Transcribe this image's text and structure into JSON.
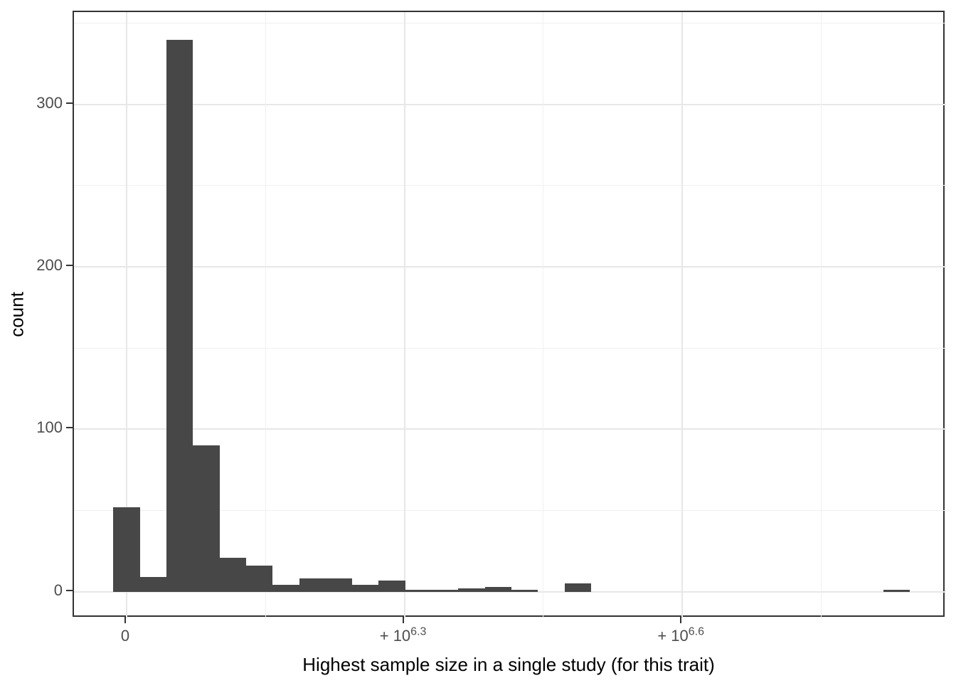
{
  "chart_data": {
    "type": "histogram",
    "title": "",
    "xlabel": "Highest sample size in a single study (for this trait)",
    "ylabel": "count",
    "x_axis": {
      "scale_note": "pseudo-log sample-size axis; u-units: 0 at tick '0', 1 at 10^6.3, 2 at 10^6.6",
      "domain_u": [
        -0.1894,
        2.9493
      ],
      "major_ticks": [
        {
          "u": 0,
          "label": "0",
          "exp": ""
        },
        {
          "u": 1,
          "label": "+ 10",
          "exp": "6.3"
        },
        {
          "u": 2,
          "label": "+ 10",
          "exp": "6.6"
        }
      ],
      "minor_ticks_u": [
        0.5,
        1.5,
        2.5
      ]
    },
    "y_axis": {
      "domain": [
        -16.4,
        356.9
      ],
      "major_ticks": [
        0,
        100,
        200,
        300
      ],
      "minor_ticks": [
        50,
        150,
        250,
        350
      ],
      "grid": true,
      "legend": "none"
    },
    "bins": {
      "start_u": -0.0478,
      "width_u": 0.09554,
      "counts": [
        52,
        9,
        340,
        90,
        21,
        16,
        4,
        8,
        8,
        4,
        7,
        1,
        1,
        2,
        3,
        1,
        0,
        5,
        0,
        0,
        0,
        0,
        0,
        0,
        0,
        0,
        0,
        0,
        0,
        1
      ]
    },
    "colors": {
      "bar": "#474747",
      "grid_major": "#e7e7e7",
      "grid_minor": "#f0f0f0",
      "panel_border": "#333333",
      "tick": "#333333",
      "tick_label": "#4d4d4d",
      "axis_title": "#000000",
      "background": "#ffffff"
    }
  }
}
